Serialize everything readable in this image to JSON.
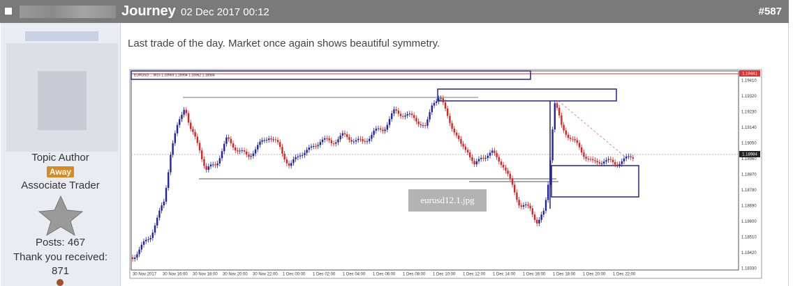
{
  "header": {
    "title": "Journey",
    "date": "02 Dec 2017 00:12",
    "post_number": "#587"
  },
  "sidebar": {
    "role": "Topic Author",
    "status": "Away",
    "rank": "Associate Trader",
    "posts": "Posts: 467",
    "thanks_label": "Thank you received:",
    "thanks": "871"
  },
  "post": {
    "text": "Last trade of the day. Market once again shows beautiful symmetry."
  },
  "image": {
    "caption": "eurusd12.1.jpg",
    "symbol_line": "EURUSD.....M15  1.18969 1.18994 1.18962 1.18984",
    "high_marker": "1.19441",
    "current_price": "1.18984",
    "price_labels": [
      "1.19410",
      "1.19320",
      "1.19230",
      "1.19140",
      "1.19050",
      "1.18960",
      "1.18870",
      "1.18780",
      "1.18690",
      "1.18600",
      "1.18510",
      "1.18420",
      "1.18330"
    ],
    "time_labels": [
      "30 Nov 2017",
      "30 Nov 16:00",
      "30 Nov 18:00",
      "30 Nov 20:00",
      "30 Nov 22:00",
      "1 Dec 00:00",
      "1 Dec 02:00",
      "1 Dec 04:00",
      "1 Dec 06:00",
      "1 Dec 08:00",
      "1 Dec 10:00",
      "1 Dec 12:00",
      "1 Dec 14:00",
      "1 Dec 16:00",
      "1 Dec 18:00",
      "1 Dec 20:00",
      "1 Dec 22:00"
    ]
  }
}
